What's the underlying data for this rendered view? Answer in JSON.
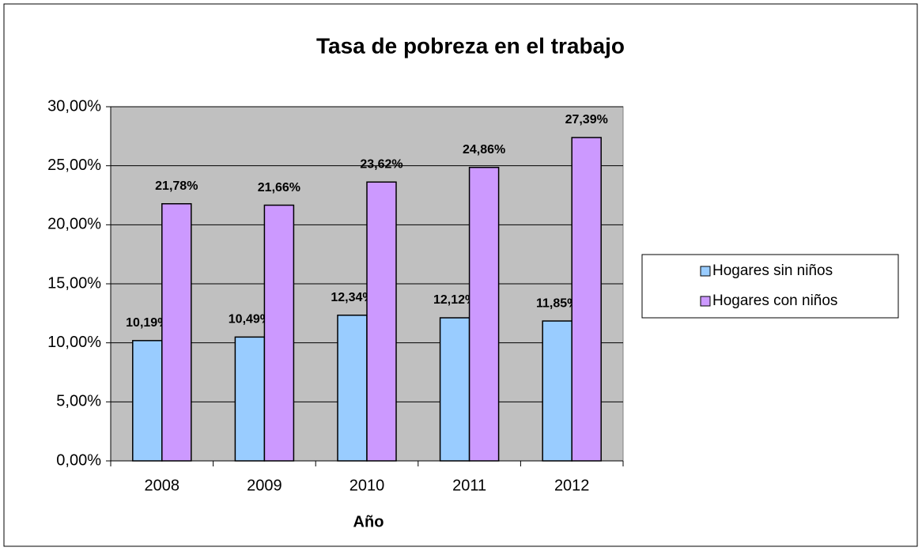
{
  "chart_data": {
    "type": "bar",
    "title": "Tasa de pobreza en el trabajo",
    "x_label": "Año",
    "categories": [
      "2008",
      "2009",
      "2010",
      "2011",
      "2012"
    ],
    "series": [
      {
        "name": "Hogares sin niños",
        "color": "#99ccff",
        "values": [
          10.19,
          10.49,
          12.34,
          12.12,
          11.85
        ],
        "value_labels": [
          "10,19%",
          "10,49%",
          "12,34%",
          "12,12%",
          "11,85%"
        ]
      },
      {
        "name": "Hogares con niños",
        "color": "#cc99ff",
        "values": [
          21.78,
          21.66,
          23.62,
          24.86,
          27.39
        ],
        "value_labels": [
          "21,78%",
          "21,66%",
          "23,62%",
          "24,86%",
          "27,39%"
        ]
      }
    ],
    "ylim": [
      0,
      30
    ],
    "yticks": [
      {
        "value": 0,
        "label": "0,00%"
      },
      {
        "value": 5,
        "label": "5,00%"
      },
      {
        "value": 10,
        "label": "10,00%"
      },
      {
        "value": 15,
        "label": "15,00%"
      },
      {
        "value": 20,
        "label": "20,00%"
      },
      {
        "value": 25,
        "label": "25,00%"
      },
      {
        "value": 30,
        "label": "30,00%"
      }
    ],
    "grid": true,
    "legend": "right",
    "plot_background": "#c0c0c0"
  }
}
